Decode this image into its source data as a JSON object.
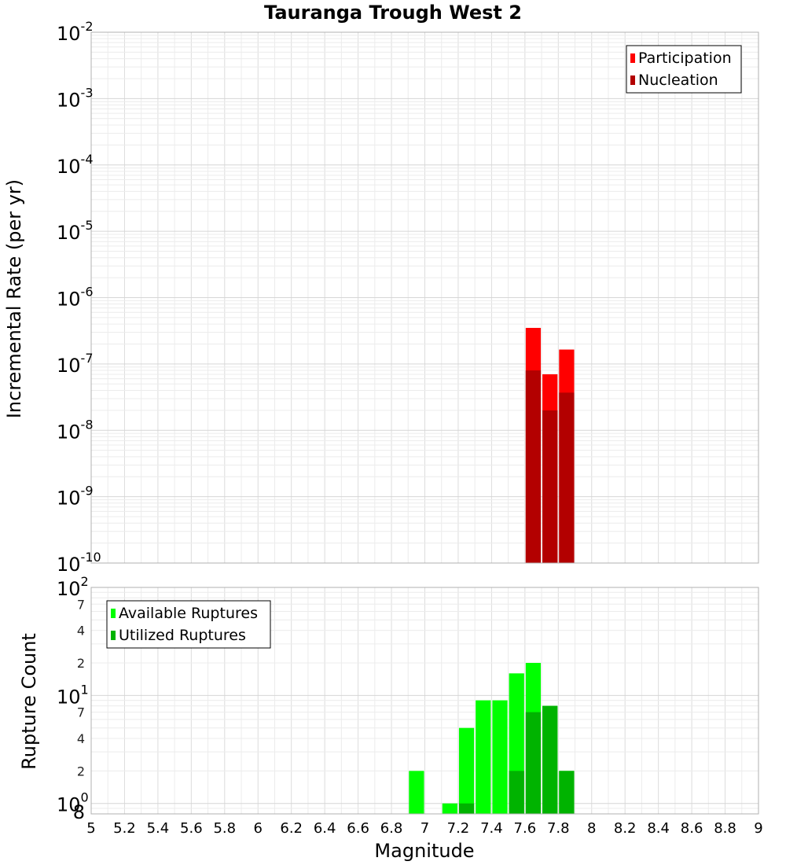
{
  "chart_data": [
    {
      "type": "bar",
      "title": "Tauranga Trough West 2",
      "xlabel": "Magnitude",
      "ylabel": "Incremental Rate (per yr)",
      "yscale": "log",
      "ylim": [
        1e-10,
        0.01
      ],
      "xlim": [
        5,
        9
      ],
      "y_tick_labels": [
        {
          "base": "10",
          "exp": "-2"
        },
        {
          "base": "10",
          "exp": "-3"
        },
        {
          "base": "10",
          "exp": "-4"
        },
        {
          "base": "10",
          "exp": "-5"
        },
        {
          "base": "10",
          "exp": "-6"
        },
        {
          "base": "10",
          "exp": "-7"
        },
        {
          "base": "10",
          "exp": "-8"
        },
        {
          "base": "10",
          "exp": "-9"
        },
        {
          "base": "10",
          "exp": "-10"
        }
      ],
      "legend_position": "top-right",
      "grid": true,
      "bar_width": 0.1,
      "series": [
        {
          "name": "Participation",
          "color": "#ff0000",
          "x": [
            7.65,
            7.75,
            7.85
          ],
          "values": [
            3.5e-07,
            7e-08,
            1.65e-07
          ]
        },
        {
          "name": "Nucleation",
          "color": "#b30000",
          "x": [
            7.65,
            7.75,
            7.85
          ],
          "values": [
            8e-08,
            2e-08,
            3.7e-08
          ]
        }
      ]
    },
    {
      "type": "bar",
      "xlabel": "Magnitude",
      "ylabel": "Rupture Count",
      "yscale": "log",
      "ylim": [
        0.8,
        100
      ],
      "xlim": [
        5,
        9
      ],
      "y_tick_labels": [
        {
          "base": "10",
          "exp": "2"
        },
        {
          "base": "10",
          "exp": "1"
        },
        {
          "base": "10",
          "exp": "0"
        }
      ],
      "y_minor_labels": [
        "7",
        "4",
        "2",
        "7",
        "4",
        "2",
        "8"
      ],
      "x_tick_labels": [
        "5",
        "5.2",
        "5.4",
        "5.6",
        "5.8",
        "6",
        "6.2",
        "6.4",
        "6.6",
        "6.8",
        "7",
        "7.2",
        "7.4",
        "7.6",
        "7.8",
        "8",
        "8.2",
        "8.4",
        "8.6",
        "8.8",
        "9"
      ],
      "legend_position": "top-left",
      "grid": true,
      "bar_width": 0.1,
      "series": [
        {
          "name": "Available Ruptures",
          "color": "#00ff00",
          "x": [
            6.95,
            7.15,
            7.25,
            7.35,
            7.45,
            7.55,
            7.65,
            7.75,
            7.85
          ],
          "values": [
            2,
            1,
            5,
            9,
            9,
            16,
            20,
            8,
            2
          ]
        },
        {
          "name": "Utilized Ruptures",
          "color": "#00b300",
          "x": [
            7.25,
            7.55,
            7.65,
            7.75,
            7.85
          ],
          "values": [
            1,
            2,
            7,
            8,
            2
          ]
        }
      ]
    }
  ]
}
